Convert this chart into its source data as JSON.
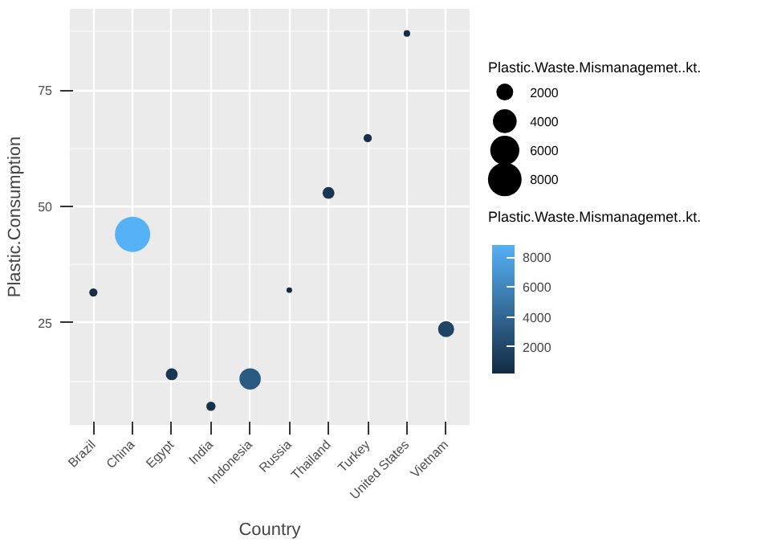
{
  "chart_data": {
    "type": "bubble",
    "xlabel": "Country",
    "ylabel": "Plastic.Consumption",
    "categories": [
      "Brazil",
      "China",
      "Egypt",
      "India",
      "Indonesia",
      "Russia",
      "Thailand",
      "Turkey",
      "United States",
      "Vietnam"
    ],
    "values": [
      31.5,
      44,
      13.9,
      7,
      12.9,
      32,
      52.9,
      64.7,
      87.2,
      23.6
    ],
    "sizes": [
      480,
      8820,
      1000,
      600,
      3220,
      220,
      1000,
      480,
      300,
      1830
    ],
    "cvalues": [
      480,
      8820,
      1000,
      600,
      3220,
      220,
      1000,
      480,
      300,
      1830
    ],
    "size_legend": [
      2000,
      4000,
      6000,
      8000
    ],
    "legend_title": "Plastic.Waste.Mismanagemet..kt.",
    "clabel": "Plastic.Waste.Mismanagemet..kt.",
    "clim": [
      220,
      8820
    ],
    "cticks": [
      2000,
      4000,
      6000,
      8000
    ],
    "ylim": [
      3,
      92.5
    ],
    "yticks": [
      25,
      50,
      75
    ],
    "grid": true
  }
}
